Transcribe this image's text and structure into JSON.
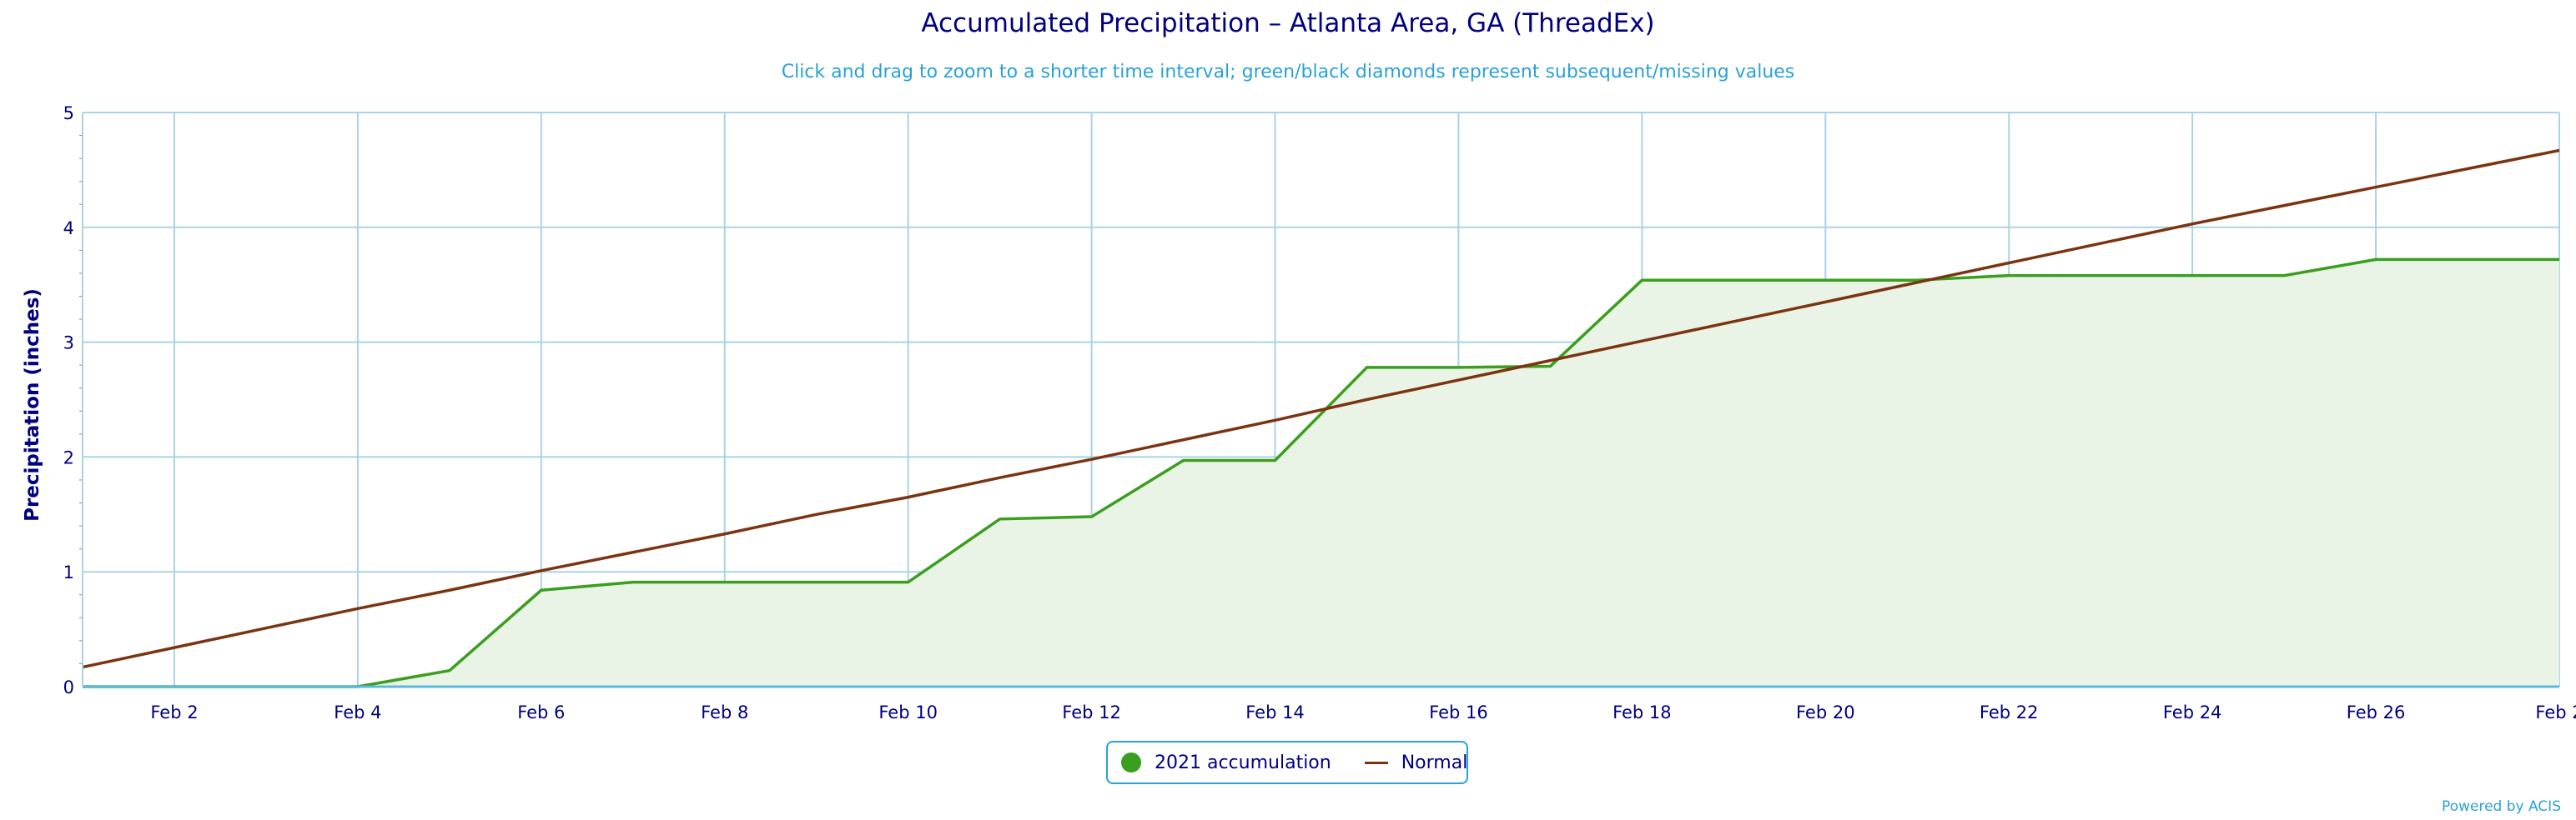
{
  "title": "Accumulated Precipitation – Atlanta Area, GA (ThreadEx)",
  "subtitle": "Click and drag to zoom to a shorter time interval; green/black diamonds represent subsequent/missing values",
  "credit": "Powered by ACIS",
  "colors": {
    "accumulation": "#3a9e1e",
    "accumulation_fill": "#eaf4e6",
    "normal": "#7b3411",
    "axis_text": "#000080",
    "grid": "#a9d3e6"
  },
  "legend": {
    "items": [
      {
        "label": "2021 accumulation",
        "marker": "circle"
      },
      {
        "label": "Normal",
        "marker": "line"
      }
    ]
  },
  "chart_data": {
    "type": "area",
    "title": "Accumulated Precipitation – Atlanta Area, GA (ThreadEx)",
    "xlabel": "",
    "ylabel": "Precipitation (inches)",
    "x_tick_labels": [
      "Feb 2",
      "Feb 4",
      "Feb 6",
      "Feb 8",
      "Feb 10",
      "Feb 12",
      "Feb 14",
      "Feb 16",
      "Feb 18",
      "Feb 20",
      "Feb 22",
      "Feb 24",
      "Feb 26",
      "Feb 2"
    ],
    "y_tick_labels": [
      "0",
      "1",
      "2",
      "3",
      "4",
      "5"
    ],
    "xlim": [
      1,
      28
    ],
    "ylim": [
      0,
      5
    ],
    "grid": true,
    "legend_position": "bottom-center",
    "series": [
      {
        "name": "2021 accumulation",
        "type": "area",
        "days": [
          1,
          2,
          3,
          4,
          5,
          6,
          7,
          8,
          9,
          10,
          11,
          12,
          13,
          14,
          15,
          16,
          17,
          18,
          19,
          20,
          21,
          22,
          23,
          24,
          25,
          26,
          27,
          28
        ],
        "values": [
          0,
          0,
          0,
          0,
          0.14,
          0.84,
          0.91,
          0.91,
          0.91,
          0.91,
          1.46,
          1.48,
          1.97,
          1.97,
          2.78,
          2.78,
          2.79,
          3.54,
          3.54,
          3.54,
          3.54,
          3.58,
          3.58,
          3.58,
          3.58,
          3.72,
          3.72,
          3.72
        ]
      },
      {
        "name": "Normal",
        "type": "line",
        "days": [
          1,
          2,
          3,
          4,
          5,
          6,
          7,
          8,
          9,
          10,
          11,
          12,
          13,
          14,
          15,
          16,
          17,
          18,
          19,
          20,
          21,
          22,
          23,
          24,
          25,
          26,
          27,
          28
        ],
        "values": [
          0.17,
          0.34,
          0.51,
          0.68,
          0.84,
          1.01,
          1.17,
          1.33,
          1.5,
          1.65,
          1.82,
          1.98,
          2.15,
          2.32,
          2.5,
          2.67,
          2.84,
          3.01,
          3.18,
          3.35,
          3.52,
          3.69,
          3.86,
          4.03,
          4.19,
          4.35,
          4.51,
          4.67
        ]
      }
    ]
  }
}
